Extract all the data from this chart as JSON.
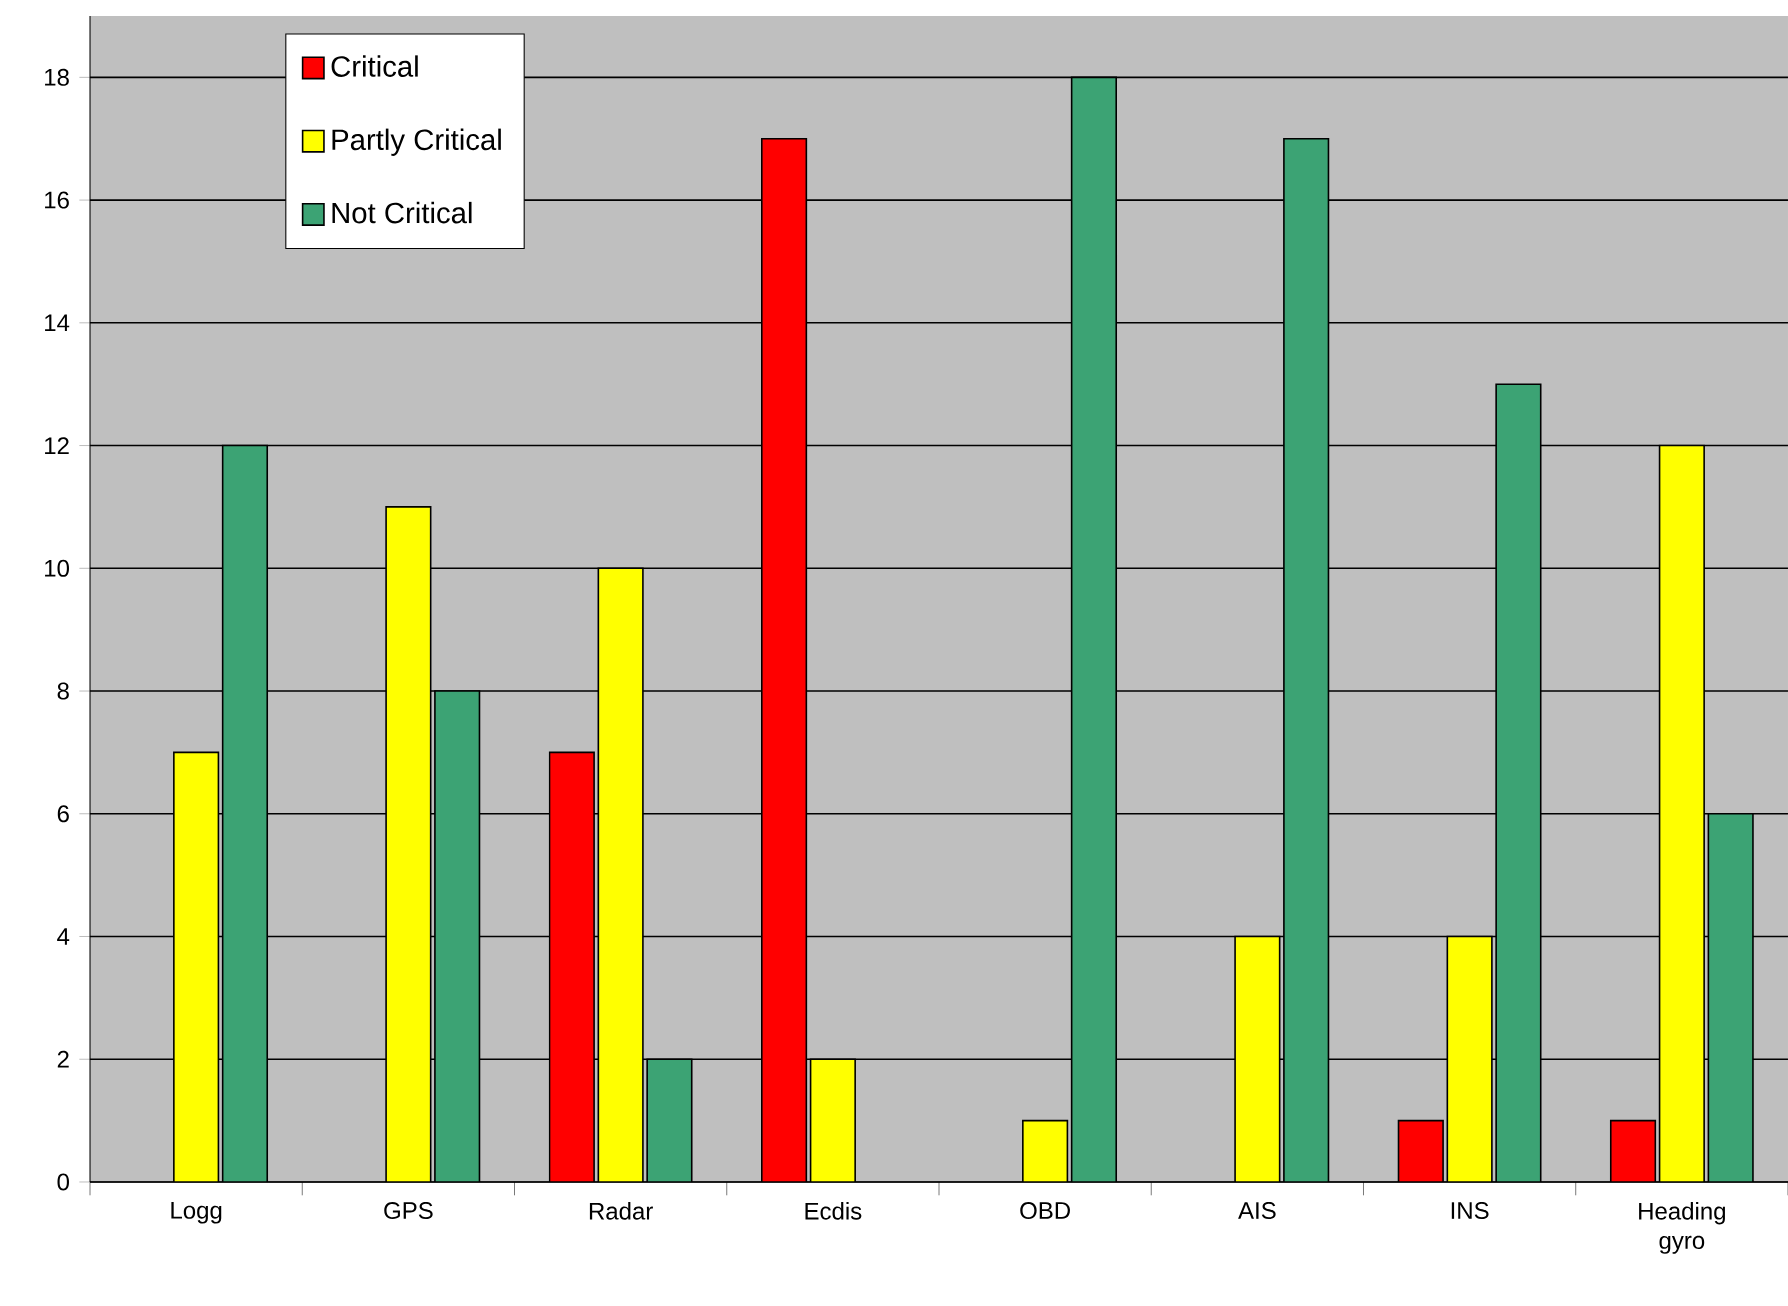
{
  "chart_data": {
    "type": "bar",
    "categories": [
      "Logg",
      "GPS",
      "Radar",
      "Ecdis",
      "OBD",
      "AIS",
      "INS",
      "Heading gyro"
    ],
    "series": [
      {
        "name": "Critical",
        "color": "#ff0000",
        "values": [
          0,
          0,
          7,
          17,
          0,
          0,
          1,
          1
        ]
      },
      {
        "name": "Partly Critical",
        "color": "#ffff00",
        "values": [
          7,
          11,
          10,
          2,
          1,
          4,
          4,
          12
        ]
      },
      {
        "name": "Not Critical",
        "color": "#3ca374",
        "values": [
          12,
          8,
          2,
          0,
          18,
          17,
          13,
          6
        ]
      }
    ],
    "ylim": [
      0,
      19
    ],
    "yticks": [
      0,
      2,
      4,
      6,
      8,
      10,
      12,
      14,
      16,
      18
    ],
    "grid": "y",
    "legend": "top left"
  }
}
